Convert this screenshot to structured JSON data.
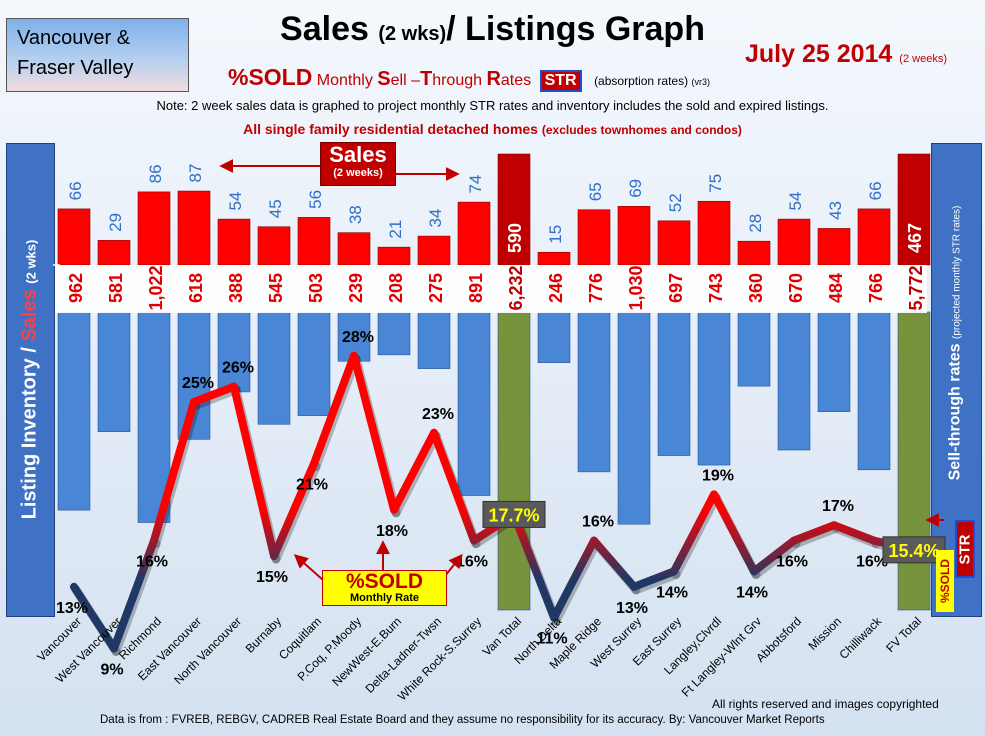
{
  "region": "Vancouver & Fraser Valley",
  "title_main": "Sales",
  "title_paren": "(2 wks)",
  "title_rest": "/ Listings Graph",
  "date_main": "July 25 2014",
  "date_note": "(2 weeks)",
  "sold_label": "%SOLD",
  "monthly_label_parts": [
    "Monthly ",
    "S",
    "ell –",
    "T",
    "hrough ",
    "R",
    "ates"
  ],
  "str_label": "STR",
  "absorption_label": "(absorption rates)",
  "version_label": "(vr3)",
  "note": "Note: 2 week sales data is graphed to project monthly STR rates and inventory includes the sold and expired listings.",
  "homes_main": "All single family residential detached homes",
  "homes_paren": "(excludes townhomes and condos)",
  "left_label_a": "Listing Inventory / ",
  "left_label_b": "Sales",
  "left_label_c": "(2 wks)",
  "right_label_a": "Sell-through rates",
  "right_label_b": "(projected monthly STR rates)",
  "right_badge_sold": "%SOLD",
  "right_badge_str": "STR",
  "sales_callout_big": "Sales",
  "sales_callout_small": "(2 weeks)",
  "sold_callout_big": "%SOLD",
  "sold_callout_small": "Monthly Rate",
  "rights": "All rights reserved and  images copyrighted",
  "source": "Data is from : FVREB, REBGV, CADREB Real Estate Board and they assume no responsibility for its accuracy. By: Vancouver Market Reports",
  "colors": {
    "sales_bar": "#ff0000",
    "inventory_bar": "#4a86d6",
    "total_inventory_bar": "#77933c",
    "total_sales_bar": "#c00000",
    "line_high": "#ff0000",
    "line_low": "#1f3864",
    "panel": "#3f72c4"
  },
  "chart_data": {
    "type": "bar",
    "categories": [
      "Vancouver",
      "West Vancouver",
      "Richmond",
      "East Vancouver",
      "North Vancouver",
      "Burnaby",
      "Coquitlam",
      "P.Coq, P.Moody",
      "NewWest-E.Burn",
      "Delta-Ladner-Twsn",
      "White Rock-S.Surrey",
      "Van Total",
      "North Delta",
      "Maple Ridge",
      "West Surrey",
      "East Surrey",
      "Langley,Clvrdl",
      "Ft Langley-Wlnt Grv",
      "Abbotsford",
      "Mission",
      "Chilliwack",
      "FV Total"
    ],
    "series": [
      {
        "name": "Sales",
        "values": [
          66,
          29,
          86,
          87,
          54,
          45,
          56,
          38,
          21,
          34,
          74,
          590,
          15,
          65,
          69,
          52,
          75,
          28,
          54,
          43,
          66,
          467
        ]
      },
      {
        "name": "Listing Inventory",
        "values": [
          "962",
          "581",
          "1,022",
          "618",
          "388",
          "545",
          "503",
          "239",
          "208",
          "275",
          "891",
          "6,232",
          "246",
          "776",
          "1,030",
          "697",
          "743",
          "360",
          "670",
          "484",
          "766",
          "5,772"
        ]
      },
      {
        "name": "%SOLD",
        "values": [
          "13%",
          "9%",
          "16%",
          "25%",
          "26%",
          "15%",
          "21%",
          "28%",
          "18%",
          "23%",
          "16%",
          "17.7%",
          "11%",
          "16%",
          "13%",
          "14%",
          "19%",
          "14%",
          "16%",
          "17%",
          "16%",
          "15.4%"
        ]
      }
    ]
  }
}
